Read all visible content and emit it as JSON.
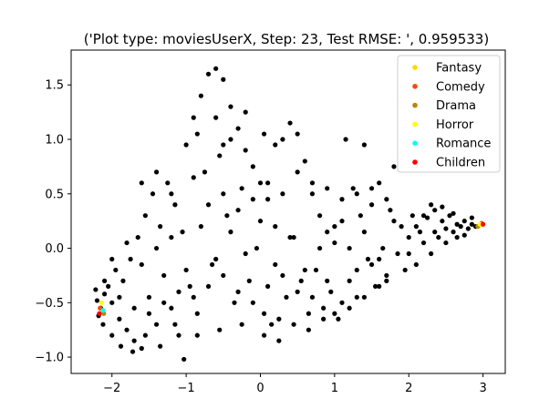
{
  "chart_data": {
    "type": "scatter",
    "title": "('Plot type: moviesUserX, Step: 23, Test RMSE: ', 0.959533)",
    "xlabel": "",
    "ylabel": "",
    "xlim": [
      -2.55,
      3.3
    ],
    "ylim": [
      -1.15,
      1.82
    ],
    "x_ticks": [
      -2,
      -1,
      0,
      1,
      2,
      3
    ],
    "y_ticks": [
      -1.0,
      -0.5,
      0.0,
      0.5,
      1.0,
      1.5
    ],
    "x_tick_labels": [
      "−2",
      "−1",
      "0",
      "1",
      "2",
      "3"
    ],
    "y_tick_labels": [
      "−1.0",
      "−0.5",
      "0.0",
      "0.5",
      "1.0",
      "1.5"
    ],
    "grid": false,
    "legend_position": "top-right",
    "series": [
      {
        "name": "",
        "color": "#000000",
        "points": [
          [
            -2.2,
            -0.48
          ],
          [
            -2.15,
            -0.55
          ],
          [
            -2.1,
            -0.42
          ],
          [
            -2.18,
            -0.62
          ],
          [
            -2.05,
            -0.35
          ],
          [
            -2.0,
            -0.5
          ],
          [
            -1.95,
            -0.2
          ],
          [
            -1.9,
            -0.65
          ],
          [
            -1.85,
            -0.3
          ],
          [
            -1.8,
            -0.75
          ],
          [
            -1.75,
            -0.1
          ],
          [
            -1.7,
            -0.85
          ],
          [
            -1.65,
            0.1
          ],
          [
            -1.6,
            -0.92
          ],
          [
            -1.55,
            0.3
          ],
          [
            -1.5,
            -0.45
          ],
          [
            -1.45,
            0.5
          ],
          [
            -1.4,
            -0.7
          ],
          [
            -1.35,
            0.2
          ],
          [
            -1.3,
            -0.25
          ],
          [
            -1.25,
            0.6
          ],
          [
            -1.2,
            -0.55
          ],
          [
            -1.15,
            0.4
          ],
          [
            -1.1,
            -0.8
          ],
          [
            -1.05,
            0.15
          ],
          [
            -1.03,
            -1.02
          ],
          [
            -1.0,
            0.95
          ],
          [
            -0.95,
            -0.35
          ],
          [
            -0.9,
            1.2
          ],
          [
            -0.85,
            -0.6
          ],
          [
            -0.8,
            1.4
          ],
          [
            -0.75,
            0.7
          ],
          [
            -0.7,
            1.6
          ],
          [
            -0.65,
            -0.15
          ],
          [
            -0.6,
            1.65
          ],
          [
            -0.55,
            0.85
          ],
          [
            -0.5,
            1.55
          ],
          [
            -0.45,
            0.3
          ],
          [
            -0.4,
            1.3
          ],
          [
            -0.35,
            -0.5
          ],
          [
            -0.3,
            1.1
          ],
          [
            -0.25,
            0.55
          ],
          [
            -0.2,
            0.9
          ],
          [
            -0.15,
            -0.3
          ],
          [
            -0.1,
            0.75
          ],
          [
            -0.05,
            0.0
          ],
          [
            0.0,
            0.6
          ],
          [
            0.05,
            -0.6
          ],
          [
            0.1,
            0.45
          ],
          [
            0.15,
            -0.7
          ],
          [
            0.2,
            0.2
          ],
          [
            0.25,
            -0.85
          ],
          [
            0.3,
            1.0
          ],
          [
            0.35,
            -0.45
          ],
          [
            0.4,
            1.15
          ],
          [
            0.45,
            0.1
          ],
          [
            0.5,
            1.05
          ],
          [
            0.55,
            -0.3
          ],
          [
            0.6,
            0.8
          ],
          [
            0.65,
            -0.6
          ],
          [
            0.7,
            0.5
          ],
          [
            0.75,
            -0.2
          ],
          [
            0.8,
            0.3
          ],
          [
            0.85,
            -0.55
          ],
          [
            0.9,
            0.15
          ],
          [
            0.95,
            -0.4
          ],
          [
            1.0,
            0.05
          ],
          [
            1.05,
            -0.65
          ],
          [
            1.1,
            0.25
          ],
          [
            1.15,
            1.0
          ],
          [
            1.2,
            -0.3
          ],
          [
            1.25,
            0.55
          ],
          [
            1.3,
            -0.45
          ],
          [
            1.35,
            0.3
          ],
          [
            1.4,
            0.95
          ],
          [
            1.45,
            -0.1
          ],
          [
            1.5,
            0.4
          ],
          [
            1.55,
            -0.35
          ],
          [
            1.6,
            0.6
          ],
          [
            1.65,
            0.0
          ],
          [
            1.7,
            -0.25
          ],
          [
            1.75,
            0.35
          ],
          [
            1.8,
            0.75
          ],
          [
            1.85,
            -0.05
          ],
          [
            1.9,
            0.2
          ],
          [
            1.95,
            -0.2
          ],
          [
            2.0,
            0.1
          ],
          [
            2.05,
            0.3
          ],
          [
            2.1,
            -0.15
          ],
          [
            2.15,
            0.15
          ],
          [
            2.2,
            0.05
          ],
          [
            2.25,
            0.28
          ],
          [
            2.3,
            -0.05
          ],
          [
            2.35,
            0.35
          ],
          [
            2.4,
            0.1
          ],
          [
            2.45,
            0.25
          ],
          [
            2.5,
            0.18
          ],
          [
            2.55,
            0.3
          ],
          [
            2.6,
            0.15
          ],
          [
            2.65,
            0.22
          ],
          [
            2.7,
            0.2
          ],
          [
            2.75,
            0.25
          ],
          [
            2.8,
            0.18
          ],
          [
            2.85,
            0.22
          ],
          [
            2.9,
            0.2
          ],
          [
            -2.0,
            -0.1
          ],
          [
            -1.8,
            0.05
          ],
          [
            -1.6,
            -0.15
          ],
          [
            -1.4,
            0.0
          ],
          [
            -1.2,
            0.1
          ],
          [
            -1.0,
            -0.2
          ],
          [
            -0.8,
            0.2
          ],
          [
            -0.6,
            -0.1
          ],
          [
            -0.4,
            0.15
          ],
          [
            -0.2,
            -0.05
          ],
          [
            0.0,
            0.25
          ],
          [
            0.2,
            -0.15
          ],
          [
            0.4,
            0.1
          ],
          [
            0.6,
            -0.2
          ],
          [
            0.8,
            0.0
          ],
          [
            1.0,
            0.2
          ],
          [
            1.2,
            0.0
          ],
          [
            1.4,
            0.15
          ],
          [
            1.6,
            -0.1
          ],
          [
            1.8,
            0.25
          ],
          [
            2.0,
            -0.05
          ],
          [
            -2.1,
            -0.3
          ],
          [
            -1.9,
            -0.45
          ],
          [
            -1.7,
            -0.55
          ],
          [
            -1.5,
            -0.6
          ],
          [
            -1.3,
            -0.5
          ],
          [
            -1.1,
            -0.4
          ],
          [
            -0.9,
            -0.45
          ],
          [
            -0.7,
            -0.35
          ],
          [
            -0.5,
            -0.25
          ],
          [
            -0.3,
            -0.4
          ],
          [
            -0.1,
            -0.5
          ],
          [
            0.1,
            -0.35
          ],
          [
            0.3,
            -0.25
          ],
          [
            0.5,
            -0.4
          ],
          [
            0.7,
            -0.45
          ],
          [
            0.9,
            -0.3
          ],
          [
            1.1,
            -0.5
          ],
          [
            1.3,
            -0.2
          ],
          [
            1.5,
            -0.15
          ],
          [
            1.7,
            -0.3
          ],
          [
            -1.6,
            0.6
          ],
          [
            -1.4,
            0.7
          ],
          [
            -1.2,
            0.5
          ],
          [
            -0.9,
            0.65
          ],
          [
            -0.7,
            0.4
          ],
          [
            -0.5,
            0.5
          ],
          [
            -0.3,
            0.35
          ],
          [
            -0.1,
            0.45
          ],
          [
            0.1,
            0.6
          ],
          [
            0.3,
            0.5
          ],
          [
            0.5,
            0.7
          ],
          [
            0.7,
            0.6
          ],
          [
            0.9,
            0.55
          ],
          [
            1.1,
            0.45
          ],
          [
            1.3,
            0.5
          ],
          [
            1.5,
            0.55
          ],
          [
            1.7,
            0.45
          ],
          [
            -0.6,
            1.2
          ],
          [
            -0.4,
            1.0
          ],
          [
            -0.2,
            1.25
          ],
          [
            0.2,
            0.95
          ],
          [
            -0.85,
            1.05
          ],
          [
            -0.5,
            0.95
          ],
          [
            0.05,
            1.05
          ],
          [
            -2.22,
            -0.38
          ],
          [
            -2.12,
            -0.7
          ],
          [
            -2.0,
            -0.8
          ],
          [
            -1.88,
            -0.9
          ],
          [
            -1.72,
            -0.95
          ],
          [
            -1.55,
            -0.8
          ],
          [
            -1.35,
            -0.9
          ],
          [
            -1.15,
            -0.7
          ],
          [
            -0.85,
            -0.8
          ],
          [
            -0.55,
            -0.75
          ],
          [
            -0.25,
            -0.7
          ],
          [
            0.05,
            -0.8
          ],
          [
            0.25,
            -0.65
          ],
          [
            0.45,
            -0.7
          ],
          [
            0.65,
            -0.75
          ],
          [
            0.85,
            -0.65
          ],
          [
            1.0,
            -0.6
          ],
          [
            1.2,
            -0.55
          ],
          [
            1.4,
            -0.45
          ],
          [
            1.6,
            -0.35
          ],
          [
            2.3,
            0.4
          ],
          [
            2.45,
            0.38
          ],
          [
            2.6,
            0.32
          ],
          [
            2.2,
            0.3
          ],
          [
            2.1,
            0.2
          ],
          [
            2.35,
            0.15
          ],
          [
            2.5,
            0.05
          ],
          [
            2.65,
            0.1
          ],
          [
            2.75,
            0.12
          ],
          [
            2.85,
            0.28
          ]
        ]
      },
      {
        "name": "Fantasy",
        "color": "#ffd700",
        "points": [
          [
            -2.13,
            -0.58
          ],
          [
            2.95,
            0.21
          ]
        ]
      },
      {
        "name": "Comedy",
        "color": "#ff4500",
        "points": [
          [
            -2.16,
            -0.55
          ],
          [
            2.98,
            0.23
          ]
        ]
      },
      {
        "name": "Drama",
        "color": "#b8860b",
        "points": [
          [
            -2.11,
            -0.6
          ],
          [
            2.93,
            0.2
          ]
        ]
      },
      {
        "name": "Horror",
        "color": "#ffff00",
        "points": [
          [
            -2.14,
            -0.5
          ],
          [
            2.96,
            0.22
          ]
        ]
      },
      {
        "name": "Romance",
        "color": "#00ffff",
        "points": [
          [
            -2.12,
            -0.57
          ]
        ]
      },
      {
        "name": "Children",
        "color": "#ff0000",
        "points": [
          [
            -2.17,
            -0.6
          ],
          [
            3.0,
            0.22
          ]
        ]
      }
    ]
  }
}
